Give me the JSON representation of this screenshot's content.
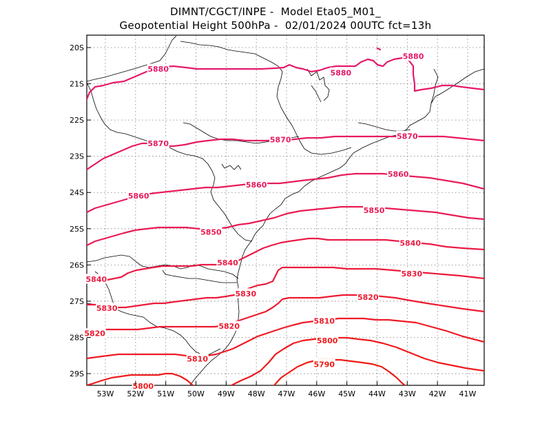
{
  "title": {
    "line1": "DIMNT/CGCT/INPE -  Model Eta05_M01_",
    "line2": "Geopotential Height 500hPa -  02/01/2024 00UTC fct=13h"
  },
  "map": {
    "lat_labels": [
      "20S",
      "21S",
      "22S",
      "23S",
      "24S",
      "25S",
      "26S",
      "27S",
      "28S",
      "29S"
    ],
    "lon_labels": [
      "53W",
      "52W",
      "51W",
      "50W",
      "49W",
      "48W",
      "47W",
      "46W",
      "45W",
      "44W",
      "43W",
      "42W",
      "41W"
    ],
    "contour_labels": [
      {
        "text": "5880",
        "lon": -42.8,
        "lat": -20.25
      },
      {
        "text": "5880",
        "lon": -45.2,
        "lat": -20.7
      },
      {
        "text": "5880",
        "lon": -51.25,
        "lat": -20.6
      },
      {
        "text": "5870",
        "lon": -51.25,
        "lat": -22.65
      },
      {
        "text": "5870",
        "lon": -47.2,
        "lat": -22.55
      },
      {
        "text": "5870",
        "lon": -43.0,
        "lat": -22.45
      },
      {
        "text": "5860",
        "lon": -51.9,
        "lat": -24.1
      },
      {
        "text": "5860",
        "lon": -48.0,
        "lat": -23.8
      },
      {
        "text": "5860",
        "lon": -43.3,
        "lat": -23.5
      },
      {
        "text": "5850",
        "lon": -49.5,
        "lat": -25.1
      },
      {
        "text": "5850",
        "lon": -44.1,
        "lat": -24.5
      },
      {
        "text": "5840",
        "lon": -53.3,
        "lat": -26.4
      },
      {
        "text": "5840",
        "lon": -48.95,
        "lat": -25.95
      },
      {
        "text": "5840",
        "lon": -42.9,
        "lat": -25.4
      },
      {
        "text": "5830",
        "lon": -52.95,
        "lat": -27.2
      },
      {
        "text": "5830",
        "lon": -48.35,
        "lat": -26.8
      },
      {
        "text": "5830",
        "lon": -42.85,
        "lat": -26.25
      },
      {
        "text": "5820",
        "lon": -53.35,
        "lat": -27.9
      },
      {
        "text": "5820",
        "lon": -48.9,
        "lat": -27.7
      },
      {
        "text": "5820",
        "lon": -44.3,
        "lat": -26.9
      },
      {
        "text": "5810",
        "lon": -49.95,
        "lat": -28.6
      },
      {
        "text": "5810",
        "lon": -45.75,
        "lat": -27.55
      },
      {
        "text": "5800",
        "lon": -51.75,
        "lat": -29.35
      },
      {
        "text": "5800",
        "lon": -45.65,
        "lat": -28.1
      },
      {
        "text": "5790",
        "lon": -45.75,
        "lat": -28.75
      }
    ],
    "colors": {
      "c5880": "#e6186a",
      "c5870": "#e71a62",
      "c5860": "#e81a5a",
      "c5850": "#ea1a52",
      "c5840": "#eb1b46",
      "c5830": "#ec1a3a",
      "c5820": "#ed1a30",
      "c5810": "#ee1a26",
      "c5800": "#ef1a1c",
      "c5790": "#ef1a12",
      "coast": "#000000",
      "grid": "#7a7a7a"
    }
  }
}
